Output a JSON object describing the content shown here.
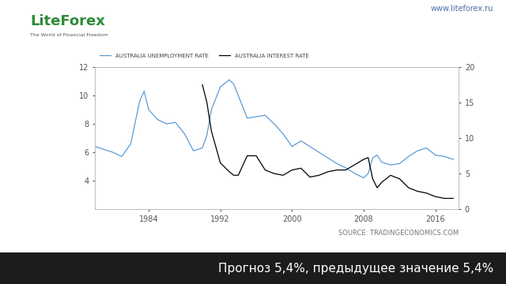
{
  "chart_data": {
    "type": "line",
    "annotations": [
      "LiteForex",
      "The World of Financial Freedom",
      "www.liteforex.ru",
      "SOURCE: TRADINGECONOMICS.COM",
      "Прогноз 5,4%, предыдущее значение 5,4%"
    ],
    "x": [
      1978,
      1979,
      1980,
      1981,
      1982,
      1983,
      1983.5,
      1984,
      1985,
      1986,
      1987,
      1988,
      1989,
      1990,
      1990.5,
      1991,
      1992,
      1993,
      1993.5,
      1994,
      1995,
      1996,
      1997,
      1998,
      1999,
      2000,
      2001,
      2002,
      2003,
      2004,
      2005,
      2006,
      2007,
      2008,
      2008.5,
      2009,
      2009.5,
      2010,
      2011,
      2012,
      2013,
      2014,
      2015,
      2016,
      2017,
      2018
    ],
    "series": [
      {
        "name": "AUSTRALIA UNEMPLOYMENT RATE",
        "color": "#5b9bd5",
        "line_style": "solid",
        "values": [
          6.4,
          6.2,
          6.0,
          5.7,
          6.6,
          9.6,
          10.3,
          9.0,
          8.3,
          8.0,
          8.1,
          7.3,
          6.1,
          6.3,
          7.2,
          9.0,
          10.6,
          11.1,
          10.8,
          10.0,
          8.4,
          8.5,
          8.6,
          8.0,
          7.3,
          6.4,
          6.8,
          6.4,
          6.0,
          5.6,
          5.2,
          4.9,
          4.5,
          4.2,
          4.5,
          5.6,
          5.8,
          5.3,
          5.1,
          5.2,
          5.7,
          6.1,
          6.3,
          5.8,
          5.7,
          5.5
        ]
      },
      {
        "name": "AUSTRALIA INTEREST RATE",
        "color": "#000000",
        "line_style": "solid",
        "axis": "y2",
        "values": [
          null,
          null,
          null,
          null,
          null,
          null,
          null,
          null,
          null,
          null,
          null,
          null,
          null,
          17.5,
          15.0,
          11.0,
          6.5,
          5.25,
          4.75,
          4.75,
          7.5,
          7.5,
          5.5,
          5.0,
          4.75,
          5.5,
          5.75,
          4.5,
          4.75,
          5.25,
          5.5,
          5.5,
          6.25,
          7.0,
          7.25,
          4.25,
          3.0,
          3.75,
          4.75,
          4.25,
          3.0,
          2.5,
          2.25,
          1.75,
          1.5,
          1.5
        ]
      }
    ],
    "xlim": [
      1978,
      2018.6
    ],
    "xticks": [
      1984,
      1992,
      2000,
      2008,
      2016
    ],
    "ylim": [
      2,
      12
    ],
    "yticks": [
      4,
      6,
      8,
      10,
      12
    ],
    "y2lim": [
      0,
      20
    ],
    "y2ticks": [
      0,
      5,
      10,
      15,
      20
    ],
    "legend": "upper left",
    "grid": false
  }
}
